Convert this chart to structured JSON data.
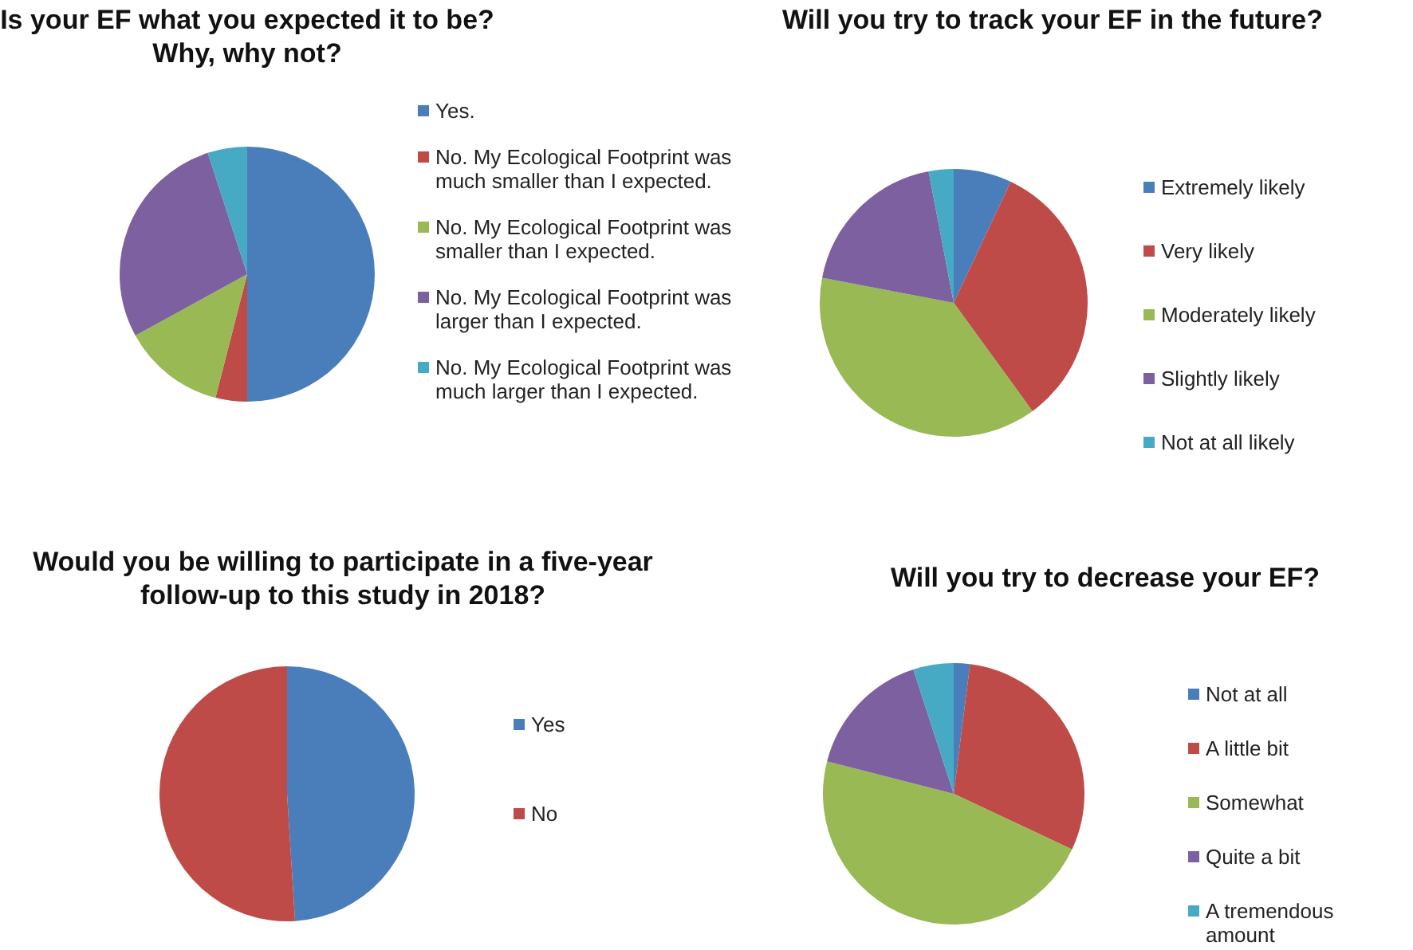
{
  "chart_data": [
    {
      "type": "pie",
      "title": "Is your EF what you expected it to be? Why, why not?",
      "categories": [
        "Yes.",
        "No. My Ecological Footprint was much smaller than I expected.",
        "No. My Ecological Footprint was smaller than I expected.",
        "No. My Ecological Footprint was larger than I expected.",
        "No. My Ecological Footprint was much larger than I expected."
      ],
      "values": [
        50,
        4,
        13,
        28,
        5
      ],
      "colors": [
        "#4a7ebb",
        "#be4b48",
        "#98b954",
        "#7d60a0",
        "#46aac5"
      ],
      "legend": "right"
    },
    {
      "type": "pie",
      "title": "Will you try to track your EF in the future?",
      "categories": [
        "Extremely likely",
        "Very likely",
        "Moderately likely",
        "Slightly likely",
        "Not at all likely"
      ],
      "values": [
        7,
        33,
        38,
        19,
        3
      ],
      "colors": [
        "#4a7ebb",
        "#be4b48",
        "#98b954",
        "#7d60a0",
        "#46aac5"
      ],
      "legend": "right"
    },
    {
      "type": "pie",
      "title": "Would you be willing to participate in a five-year follow-up to this study in 2018?",
      "categories": [
        "Yes",
        "No"
      ],
      "values": [
        49,
        51
      ],
      "colors": [
        "#4a7ebb",
        "#be4b48"
      ],
      "legend": "right"
    },
    {
      "type": "pie",
      "title": "Will you try to decrease your EF?",
      "categories": [
        "Not at all",
        "A little bit",
        "Somewhat",
        "Quite a bit",
        "A tremendous amount"
      ],
      "values": [
        2,
        30,
        47,
        16,
        5
      ],
      "colors": [
        "#4a7ebb",
        "#be4b48",
        "#98b954",
        "#7d60a0",
        "#46aac5"
      ],
      "legend": "right"
    }
  ]
}
